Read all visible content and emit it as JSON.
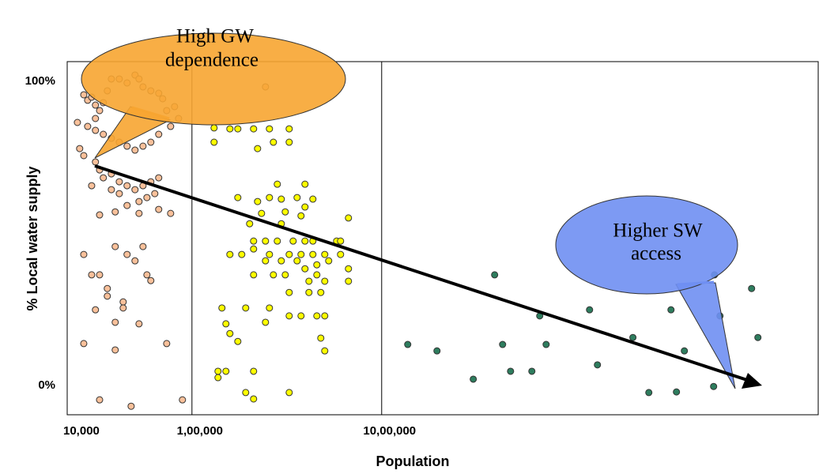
{
  "chart_data": {
    "type": "scatter",
    "x_label": "Population",
    "y_label": "% Local water supply",
    "log_x": true,
    "xlim": [
      22000,
      200000000
    ],
    "xticks": [
      {
        "value": 10000,
        "label": "10,000"
      },
      {
        "value": 100000,
        "label": "1,00,000"
      },
      {
        "value": 1000000,
        "label": "10,00,000"
      }
    ],
    "grid_x": true,
    "ylim": [
      -9.6,
      106.5
    ],
    "yticks": [
      {
        "value": 100,
        "label": "100%"
      },
      {
        "value": 0,
        "label": "0%"
      }
    ],
    "annotations": [
      [
        "High GW",
        "dependence"
      ],
      [
        "Higher SW",
        "access"
      ]
    ],
    "series": [
      {
        "color": "#f9c09a",
        "x": [
          26900,
          28200,
          29600,
          31000,
          24900,
          28200,
          31000,
          32600,
          34100,
          35800,
          37600,
          41400,
          45500,
          50100,
          52600,
          55200,
          60700,
          66800,
          70100,
          73600,
          81000,
          85000,
          77200,
          66800,
          60700,
          55200,
          50100,
          45500,
          41400,
          37600,
          34100,
          31000,
          25600,
          26900,
          31000,
          32600,
          34100,
          37600,
          41400,
          45500,
          50100,
          55200,
          60700,
          66800,
          63700,
          57900,
          52600,
          45500,
          41400,
          37600,
          29600,
          32600,
          39400,
          52600,
          66800,
          77200,
          26900,
          39400,
          45500,
          50100,
          55200,
          57900,
          60700,
          29600,
          32600,
          35800,
          35800,
          43400,
          43400,
          31000,
          52600,
          39400,
          26900,
          39400,
          73600,
          32600,
          47800,
          89100,
          244100
        ],
        "values": [
          95.6,
          93.8,
          94.8,
          92.2,
          86.5,
          85.2,
          87.8,
          90.4,
          93,
          96.9,
          100.8,
          100.8,
          99.5,
          102.1,
          100.8,
          98.2,
          96.9,
          96.1,
          94.3,
          90.4,
          91.7,
          87.8,
          85.2,
          82.6,
          80,
          78.7,
          77.4,
          78.7,
          80,
          81.3,
          82.6,
          83.9,
          77.9,
          75.6,
          73.5,
          70.9,
          68.3,
          69.6,
          67,
          65.7,
          64.4,
          65.7,
          67,
          68.3,
          63.1,
          61.8,
          60.5,
          59.2,
          63.1,
          64.4,
          65.7,
          56.1,
          57.1,
          56.6,
          57.9,
          56.6,
          43.1,
          45.7,
          43.1,
          41,
          45.7,
          36.4,
          34.5,
          36.4,
          36.4,
          31.9,
          29.4,
          27.5,
          25.5,
          24.9,
          20.3,
          20.8,
          13.8,
          11.7,
          13.8,
          -4.7,
          -6.8,
          -4.7,
          98.2
        ]
      },
      {
        "color": "#ffff00",
        "x": [
          130800,
          158500,
          174500,
          211300,
          256100,
          325500,
          130800,
          221800,
          268700,
          325500,
          281800,
          394300,
          174500,
          221800,
          256100,
          295800,
          358300,
          434000,
          232700,
          310300,
          375800,
          394300,
          668300,
          201400,
          295800,
          211300,
          244100,
          281800,
          341500,
          394300,
          434000,
          578800,
          607200,
          158500,
          183000,
          211300,
          256100,
          325500,
          375800,
          434000,
          501200,
          607200,
          244100,
          295800,
          358300,
          455300,
          525800,
          211300,
          268700,
          310300,
          394300,
          455300,
          668300,
          413700,
          501200,
          668300,
          325500,
          413700,
          477700,
          143900,
          192000,
          256100,
          325500,
          375800,
          455300,
          501200,
          151000,
          158500,
          174500,
          244100,
          477700,
          501200,
          137200,
          151000,
          137200,
          211300,
          192000,
          211300,
          325500
        ],
        "values": [
          84.7,
          84.4,
          84.4,
          84.4,
          84.4,
          84.4,
          80,
          77.9,
          80,
          80,
          66.2,
          66.2,
          61.8,
          60.5,
          61.8,
          61.3,
          61.8,
          61.3,
          56.6,
          57.1,
          55.8,
          58.7,
          55.1,
          53.2,
          53.2,
          47.5,
          47.5,
          47.5,
          47.5,
          47.5,
          47.5,
          47.5,
          47.5,
          43.1,
          43.1,
          44.9,
          43.1,
          43.1,
          43.1,
          43.1,
          43.1,
          43.1,
          41,
          41,
          41,
          39.7,
          41,
          36.4,
          36.4,
          36.4,
          38.4,
          36.4,
          38.4,
          34.3,
          34.3,
          34.3,
          30.6,
          30.6,
          30.6,
          25.5,
          25.5,
          25.5,
          22.9,
          22.9,
          22.9,
          22.9,
          20.3,
          17.1,
          14.5,
          20.8,
          15.6,
          11.4,
          4.7,
          4.7,
          2.6,
          4.7,
          -2.3,
          -4.4,
          -2.3
        ]
      },
      {
        "color": "#2e7d5e",
        "x": [
          3940000,
          1372000,
          1957000,
          3040000,
          4340000,
          4780000,
          6190000,
          6810000,
          7360000,
          12470000,
          13720000,
          21100000,
          25600000,
          33500000,
          35800000,
          39400000,
          56200000,
          56800000,
          60700000,
          89100000,
          96200000
        ],
        "values": [
          36.4,
          13.5,
          11.4,
          2.1,
          13.5,
          4.7,
          4.7,
          22.9,
          13.5,
          24.9,
          6.8,
          15.8,
          -2.3,
          24.9,
          -2.1,
          11.4,
          -0.3,
          36.4,
          22.9,
          31.9,
          15.8
        ]
      }
    ]
  }
}
